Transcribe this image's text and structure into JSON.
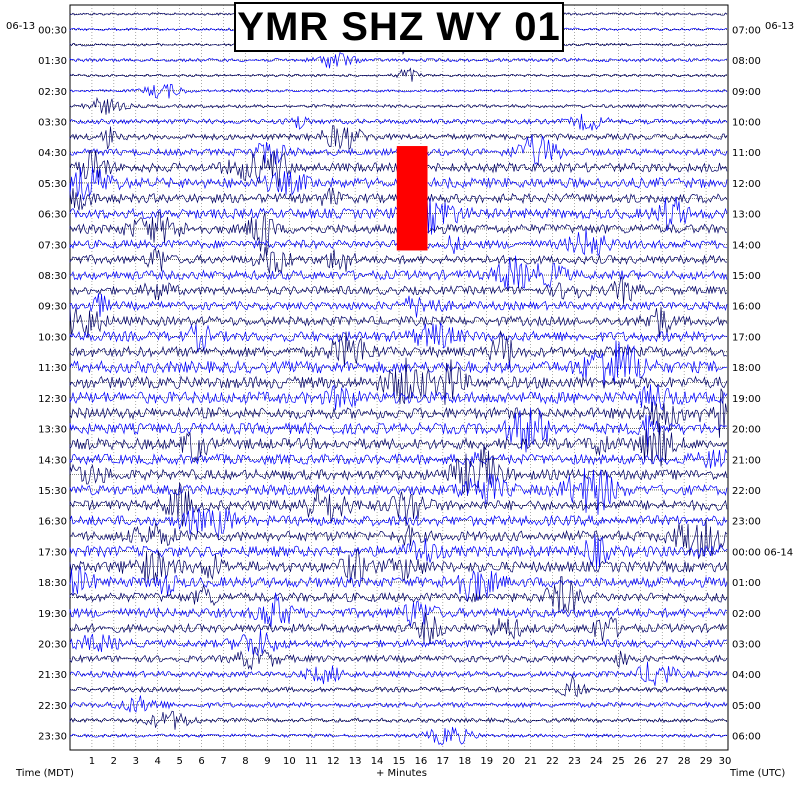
{
  "title": "YMR SHZ WY 01",
  "date_left": "06-13",
  "date_right": "06-13",
  "xlabel_left": "Time (MDT)",
  "xlabel_center": "+ Minutes",
  "xlabel_right": "Time (UTC)",
  "colors": {
    "dark": "#000066",
    "blue": "#0000ff",
    "red": "#ff0000",
    "grid": "#000000"
  },
  "chart_data": {
    "type": "line",
    "title": "YMR SHZ WY 01",
    "xlabel": "+ Minutes",
    "xlim": [
      0,
      30
    ],
    "x_ticks": [
      1,
      2,
      3,
      4,
      5,
      6,
      7,
      8,
      9,
      10,
      11,
      12,
      13,
      14,
      15,
      16,
      17,
      18,
      19,
      20,
      21,
      22,
      23,
      24,
      25,
      26,
      27,
      28,
      29,
      30
    ],
    "rows_count": 48,
    "left_labels": [
      "00:30",
      "01:30",
      "02:30",
      "03:30",
      "04:30",
      "05:30",
      "06:30",
      "07:30",
      "08:30",
      "09:30",
      "10:30",
      "11:30",
      "12:30",
      "13:30",
      "14:30",
      "15:30",
      "16:30",
      "17:30",
      "18:30",
      "19:30",
      "20:30",
      "21:30",
      "22:30",
      "23:30"
    ],
    "right_labels": [
      "07:00",
      "08:00",
      "09:00",
      "10:00",
      "11:00",
      "12:00",
      "13:00",
      "14:00",
      "15:00",
      "16:00",
      "17:00",
      "18:00",
      "19:00",
      "20:00",
      "21:00",
      "22:00",
      "23:00",
      "00:00 06-14",
      "01:00",
      "02:00",
      "03:00",
      "04:00",
      "05:00",
      "06:00"
    ],
    "row_colors": [
      "dark",
      "blue"
    ],
    "amplitude_level": [
      0.15,
      0.15,
      0.15,
      0.2,
      0.15,
      0.15,
      0.2,
      0.3,
      0.35,
      0.4,
      0.55,
      0.6,
      0.55,
      0.6,
      0.55,
      0.5,
      0.5,
      0.55,
      0.5,
      0.5,
      0.55,
      0.6,
      0.6,
      0.7,
      0.7,
      0.7,
      0.65,
      0.65,
      0.65,
      0.6,
      0.6,
      0.6,
      0.6,
      0.6,
      0.6,
      0.65,
      0.65,
      0.6,
      0.55,
      0.55,
      0.5,
      0.45,
      0.4,
      0.35,
      0.3,
      0.3,
      0.25,
      0.2
    ],
    "clipped_block": {
      "row_start": 9,
      "row_end": 15,
      "minute_start": 14.9,
      "minute_end": 16.3
    }
  }
}
